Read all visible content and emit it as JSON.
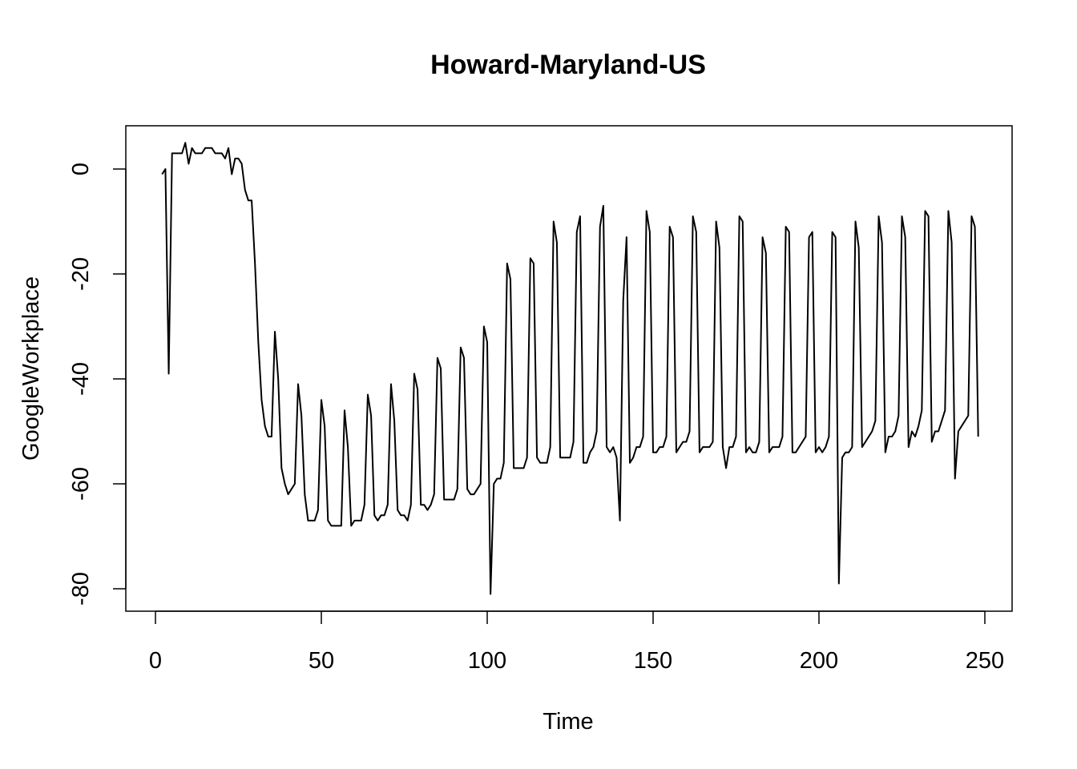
{
  "chart_data": {
    "type": "line",
    "title": "Howard-Maryland-US",
    "xlabel": "Time",
    "ylabel": "GoogleWorkplace",
    "xlim": [
      0,
      250
    ],
    "ylim": [
      -80,
      0
    ],
    "x_ticks": [
      0,
      50,
      100,
      150,
      200,
      250
    ],
    "y_ticks": [
      -80,
      -60,
      -40,
      -20,
      0
    ],
    "grid": false,
    "legend": "none",
    "line_color": "#000000",
    "series": [
      {
        "x_start": 2,
        "values": [
          -1,
          0,
          -39,
          3,
          3,
          3,
          3,
          5,
          1,
          4,
          3,
          3,
          3,
          4,
          4,
          4,
          3,
          3,
          3,
          2,
          4,
          -1,
          2,
          2,
          1,
          -4,
          -6,
          -6,
          -18,
          -33,
          -44,
          -49,
          -51,
          -51,
          -31,
          -40,
          -57,
          -60,
          -62,
          -61,
          -60,
          -41,
          -47,
          -62,
          -67,
          -67,
          -67,
          -65,
          -44,
          -49,
          -67,
          -68,
          -68,
          -68,
          -68,
          -46,
          -53,
          -68,
          -67,
          -67,
          -67,
          -64,
          -43,
          -47,
          -66,
          -67,
          -66,
          -66,
          -64,
          -41,
          -48,
          -65,
          -66,
          -66,
          -67,
          -64,
          -39,
          -42,
          -64,
          -64,
          -65,
          -64,
          -62,
          -36,
          -38,
          -63,
          -63,
          -63,
          -63,
          -61,
          -34,
          -36,
          -61,
          -62,
          -62,
          -61,
          -60,
          -30,
          -33,
          -81,
          -60,
          -59,
          -59,
          -56,
          -18,
          -21,
          -57,
          -57,
          -57,
          -57,
          -55,
          -17,
          -18,
          -55,
          -56,
          -56,
          -56,
          -53,
          -10,
          -14,
          -55,
          -55,
          -55,
          -55,
          -52,
          -12,
          -9,
          -56,
          -56,
          -54,
          -53,
          -50,
          -11,
          -7,
          -53,
          -54,
          -53,
          -55,
          -67,
          -25,
          -13,
          -56,
          -55,
          -53,
          -53,
          -51,
          -8,
          -12,
          -54,
          -54,
          -53,
          -53,
          -51,
          -11,
          -13,
          -54,
          -53,
          -52,
          -52,
          -50,
          -9,
          -12,
          -54,
          -53,
          -53,
          -53,
          -52,
          -10,
          -15,
          -53,
          -57,
          -53,
          -53,
          -51,
          -9,
          -10,
          -54,
          -53,
          -54,
          -54,
          -52,
          -13,
          -16,
          -54,
          -53,
          -53,
          -53,
          -51,
          -11,
          -12,
          -54,
          -54,
          -53,
          -52,
          -51,
          -13,
          -12,
          -54,
          -53,
          -54,
          -53,
          -51,
          -12,
          -13,
          -79,
          -55,
          -54,
          -54,
          -53,
          -10,
          -15,
          -53,
          -52,
          -51,
          -50,
          -48,
          -9,
          -14,
          -54,
          -51,
          -51,
          -50,
          -47,
          -9,
          -13,
          -53,
          -50,
          -51,
          -49,
          -46,
          -8,
          -9,
          -52,
          -50,
          -50,
          -48,
          -46,
          -8,
          -14,
          -59,
          -50,
          -49,
          -48,
          -47,
          -9,
          -11,
          -51
        ]
      }
    ]
  }
}
